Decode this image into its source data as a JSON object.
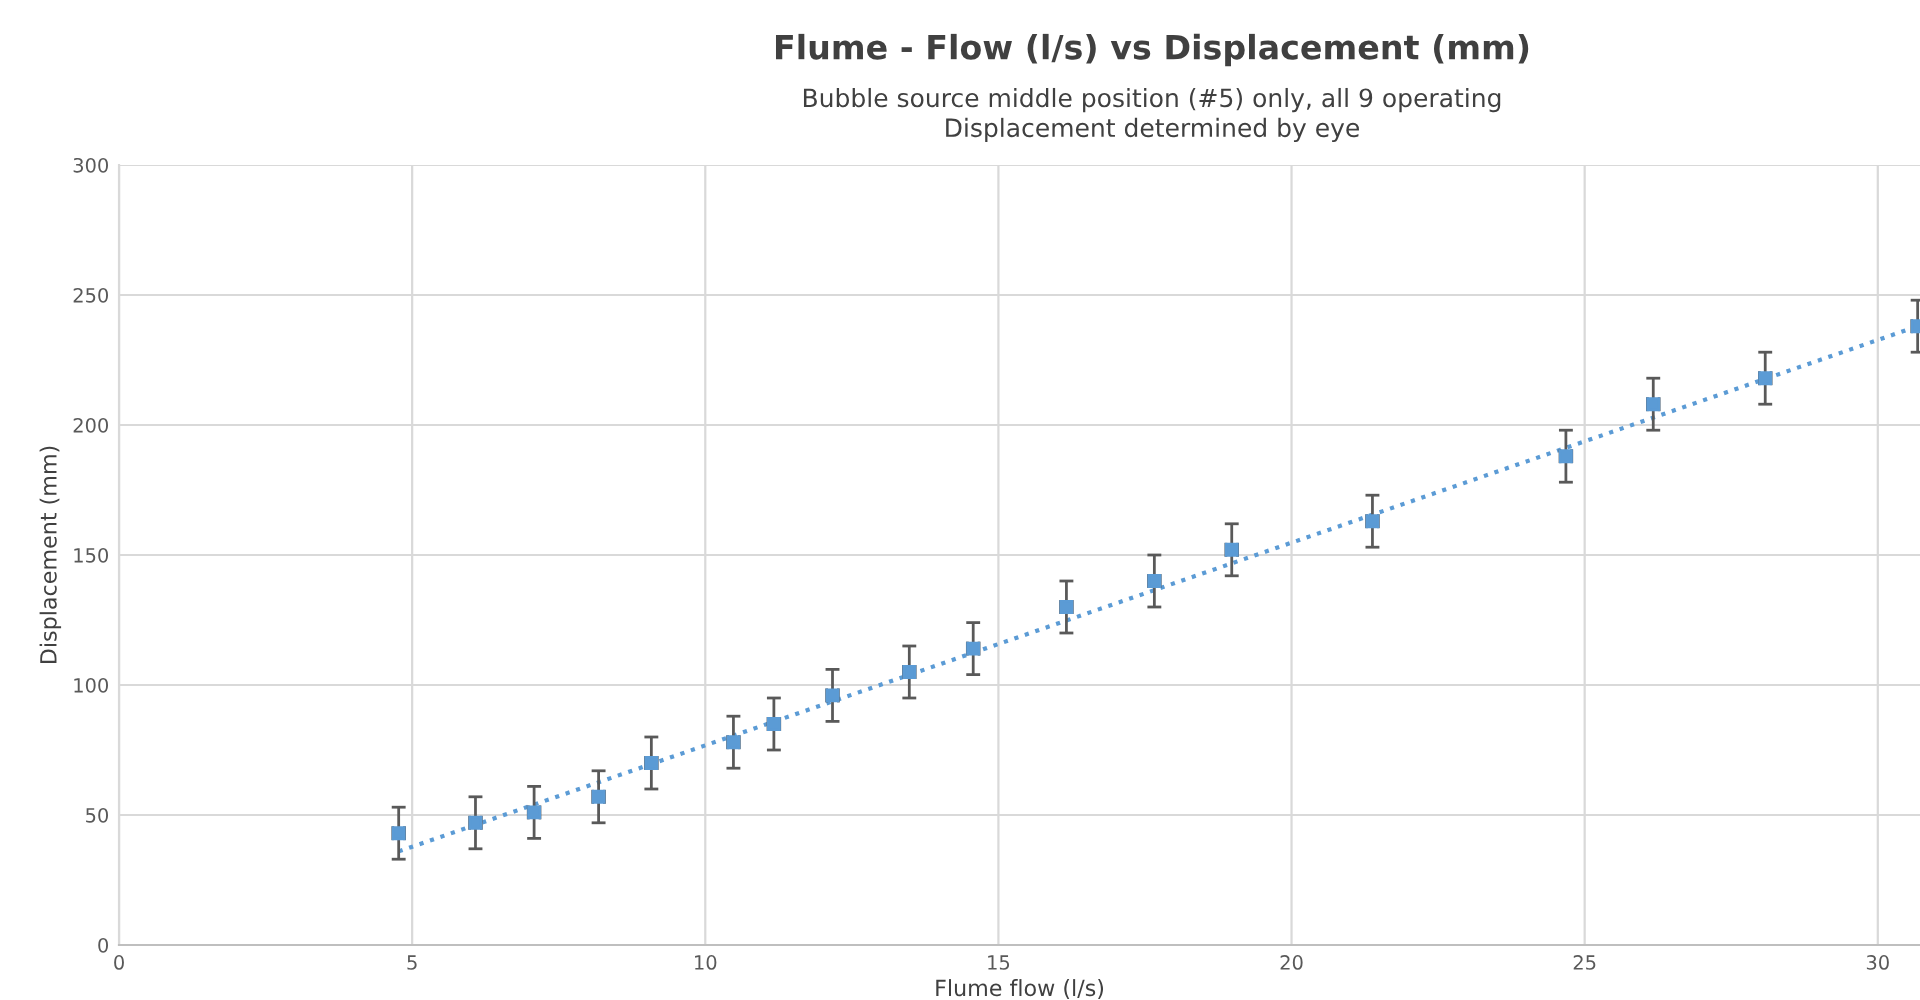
{
  "chart_data": {
    "type": "scatter",
    "title": "Flume - Flow (l/s) vs Displacement (mm)",
    "subtitle": "Bubble source middle position (#5) only, all 9 operating\nDisplacement determined by eye",
    "xlabel": "Flume flow (l/s)",
    "ylabel": "Displacement (mm)",
    "xlim": [
      0,
      30.72
    ],
    "xticks": [
      0,
      5,
      10,
      15,
      20,
      25,
      30
    ],
    "ylim": [
      0,
      300
    ],
    "yticks": [
      0,
      50,
      100,
      150,
      200,
      250,
      300
    ],
    "grid": true,
    "series": [
      {
        "marker": "square",
        "color": "#5b9bd5",
        "x": [
          4.77,
          6.08,
          7.08,
          8.18,
          9.08,
          10.48,
          11.17,
          12.17,
          13.48,
          14.57,
          16.16,
          17.66,
          18.98,
          21.38,
          24.68,
          26.17,
          28.08,
          30.68
        ],
        "values": [
          43,
          47,
          51,
          57,
          70,
          78,
          85,
          96,
          105,
          114,
          130,
          140,
          152,
          163,
          188,
          208,
          218,
          238
        ],
        "errors": [
          10,
          10,
          10,
          10,
          10,
          10,
          10,
          10,
          10,
          10,
          10,
          10,
          10,
          10,
          10,
          10,
          10,
          10
        ],
        "xerrors": [
          0.1,
          0.1,
          0.1,
          0.1,
          0.1,
          0.1,
          0.1,
          0.1,
          0.1,
          0.1,
          0.1,
          0.1,
          0.1,
          0.1,
          0.1,
          0.1,
          0.1,
          0.1
        ]
      },
      {
        "type": "line",
        "color": "#5b9bd5",
        "line_style": "dotted",
        "marker": "none",
        "x": [
          4.77,
          30.68
        ],
        "values": [
          36,
          238
        ]
      }
    ]
  }
}
